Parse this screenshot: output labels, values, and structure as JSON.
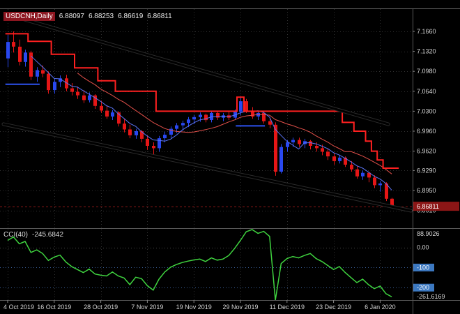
{
  "title_bar": {
    "symbol": "USDCNH,Daily",
    "open": "6.88097",
    "high": "6.88253",
    "low": "6.86619",
    "close": "6.86811"
  },
  "indicator_panel": {
    "name": "CCI(40)",
    "value": "-245.6842"
  },
  "price_axis": {
    "current_price_label": "6.86811"
  },
  "colors": {
    "background": "#000000",
    "grid": "#323232",
    "frame": "#5a5a5a",
    "up": "#2948f0",
    "down": "#e51616",
    "ma_fast": "#5a74f5",
    "ma_slow": "#e2504a",
    "step_line": "#ff2020",
    "segment": "#2d52f0",
    "trendline": "#000000",
    "trendline_halo": "#2b2b2b",
    "cci_line": "#3fd33f",
    "level_line": "#3b5f98",
    "zero_line": "#4a4a4a",
    "level_badge": "#3c78c0",
    "price_badge": "#8c1616",
    "axis_text": "#d4d4d4"
  },
  "chart_data": {
    "type": "candlestick",
    "title": "USDCNH,Daily",
    "x_tick_labels": [
      "4 Oct 2019",
      "16 Oct 2019",
      "28 Oct 2019",
      "7 Nov 2019",
      "19 Nov 2019",
      "29 Nov 2019",
      "11 Dec 2019",
      "23 Dec 2019",
      "6 Jan 2020"
    ],
    "x_tick_candle_indices": [
      0,
      8,
      16,
      24,
      32,
      40,
      48,
      56,
      64
    ],
    "price_tick_labels": [
      "7.1660",
      "7.1320",
      "7.0980",
      "7.0640",
      "7.0300",
      "6.9960",
      "6.9620",
      "6.9290",
      "6.8950",
      "6.8610"
    ],
    "last_price": 6.86811,
    "candles": [
      [
        7.12,
        7.16,
        7.105,
        7.148
      ],
      [
        7.148,
        7.166,
        7.13,
        7.14
      ],
      [
        7.14,
        7.152,
        7.108,
        7.114
      ],
      [
        7.114,
        7.135,
        7.106,
        7.13
      ],
      [
        7.13,
        7.133,
        7.083,
        7.089
      ],
      [
        7.089,
        7.105,
        7.08,
        7.1
      ],
      [
        7.1,
        7.108,
        7.088,
        7.094
      ],
      [
        7.094,
        7.098,
        7.06,
        7.066
      ],
      [
        7.066,
        7.085,
        7.06,
        7.08
      ],
      [
        7.08,
        7.091,
        7.071,
        7.086
      ],
      [
        7.086,
        7.092,
        7.064,
        7.069
      ],
      [
        7.069,
        7.078,
        7.057,
        7.063
      ],
      [
        7.063,
        7.072,
        7.051,
        7.057
      ],
      [
        7.057,
        7.066,
        7.044,
        7.049
      ],
      [
        7.049,
        7.062,
        7.045,
        7.057
      ],
      [
        7.057,
        7.059,
        7.034,
        7.039
      ],
      [
        7.039,
        7.048,
        7.027,
        7.031
      ],
      [
        7.031,
        7.04,
        7.017,
        7.021
      ],
      [
        7.021,
        7.032,
        7.015,
        7.028
      ],
      [
        7.028,
        7.03,
        7.004,
        7.009
      ],
      [
        7.009,
        7.017,
        6.994,
        6.999
      ],
      [
        6.999,
        7.007,
        6.984,
        6.989
      ],
      [
        6.989,
        7.0,
        6.983,
        6.996
      ],
      [
        6.996,
        6.998,
        6.977,
        6.983
      ],
      [
        6.983,
        6.989,
        6.964,
        6.971
      ],
      [
        6.971,
        6.977,
        6.954,
        6.967
      ],
      [
        6.967,
        6.988,
        6.961,
        6.984
      ],
      [
        6.984,
        6.995,
        6.977,
        6.99
      ],
      [
        6.99,
        7.004,
        6.984,
        7.0
      ],
      [
        7.0,
        7.01,
        6.993,
        7.006
      ],
      [
        7.006,
        7.014,
        6.997,
        7.01
      ],
      [
        7.01,
        7.02,
        7.003,
        7.016
      ],
      [
        7.016,
        7.024,
        7.008,
        7.02
      ],
      [
        7.02,
        7.028,
        7.012,
        7.024
      ],
      [
        7.024,
        7.026,
        7.011,
        7.015
      ],
      [
        7.015,
        7.031,
        7.011,
        7.027
      ],
      [
        7.027,
        7.031,
        7.015,
        7.019
      ],
      [
        7.019,
        7.027,
        7.013,
        7.023
      ],
      [
        7.023,
        7.029,
        7.015,
        7.019
      ],
      [
        7.019,
        7.033,
        7.015,
        7.029
      ],
      [
        7.029,
        7.055,
        7.023,
        7.047
      ],
      [
        7.047,
        7.051,
        7.027,
        7.031
      ],
      [
        7.031,
        7.037,
        7.017,
        7.021
      ],
      [
        7.021,
        7.031,
        7.015,
        7.027
      ],
      [
        7.027,
        7.029,
        7.009,
        7.013
      ],
      [
        7.013,
        7.019,
        7.001,
        7.007
      ],
      [
        7.007,
        7.011,
        6.92,
        6.927
      ],
      [
        6.927,
        6.974,
        6.924,
        6.969
      ],
      [
        6.969,
        6.981,
        6.961,
        6.977
      ],
      [
        6.977,
        6.985,
        6.969,
        6.981
      ],
      [
        6.981,
        6.985,
        6.969,
        6.974
      ],
      [
        6.974,
        6.983,
        6.967,
        6.979
      ],
      [
        6.979,
        6.981,
        6.965,
        6.971
      ],
      [
        6.971,
        6.977,
        6.961,
        6.967
      ],
      [
        6.967,
        6.973,
        6.955,
        6.961
      ],
      [
        6.961,
        6.967,
        6.947,
        6.953
      ],
      [
        6.953,
        6.959,
        6.939,
        6.945
      ],
      [
        6.945,
        6.955,
        6.941,
        6.951
      ],
      [
        6.951,
        6.953,
        6.935,
        6.939
      ],
      [
        6.939,
        6.945,
        6.927,
        6.931
      ],
      [
        6.931,
        6.937,
        6.915,
        6.919
      ],
      [
        6.919,
        6.929,
        6.913,
        6.925
      ],
      [
        6.925,
        6.927,
        6.909,
        6.917
      ],
      [
        6.917,
        6.921,
        6.899,
        6.904
      ],
      [
        6.904,
        6.911,
        6.893,
        6.907
      ],
      [
        6.907,
        6.909,
        6.877,
        6.881
      ],
      [
        6.88097,
        6.88253,
        6.86619,
        6.86811
      ]
    ],
    "overlays": {
      "ma_fast_period": 5,
      "ma_slow_period": 13,
      "step_line": [
        [
          -0.4,
          7.162
        ],
        [
          3.5,
          7.162
        ],
        [
          3.5,
          7.149
        ],
        [
          7.5,
          7.149
        ],
        [
          7.5,
          7.127
        ],
        [
          11.5,
          7.127
        ],
        [
          11.5,
          7.104
        ],
        [
          15.5,
          7.104
        ],
        [
          15.5,
          7.082
        ],
        [
          18.5,
          7.082
        ],
        [
          18.5,
          7.064
        ],
        [
          25.5,
          7.064
        ],
        [
          25.5,
          7.03
        ],
        [
          39.4,
          7.03
        ],
        [
          39.4,
          7.054
        ],
        [
          40.6,
          7.054
        ],
        [
          40.6,
          7.03
        ],
        [
          57.5,
          7.03
        ],
        [
          57.5,
          7.011
        ],
        [
          59.5,
          7.011
        ],
        [
          59.5,
          6.996
        ],
        [
          61.5,
          6.996
        ],
        [
          61.5,
          6.979
        ],
        [
          62.5,
          6.979
        ],
        [
          62.5,
          6.962
        ],
        [
          63.5,
          6.962
        ],
        [
          63.5,
          6.947
        ],
        [
          64.5,
          6.947
        ],
        [
          64.5,
          6.933
        ],
        [
          67.2,
          6.933
        ]
      ],
      "trendlines": [
        {
          "i1": 2.87,
          "p1": 7.1862,
          "i2": 65.4,
          "p2": 7.0079
        },
        {
          "i1": -0.72,
          "p1": 7.008,
          "i2": 69.3,
          "p2": 6.8605
        }
      ],
      "support_segments": [
        {
          "i1": -0.4,
          "i2": 5.5,
          "p": 7.076
        },
        {
          "i1": 39.2,
          "i2": 44.2,
          "p": 7.005
        }
      ]
    },
    "indicator": {
      "type": "line",
      "name": "CCI",
      "period": 40,
      "last_value": -245.6842,
      "scale_max": 88.9026,
      "scale_min": -261.6169,
      "levels": [
        0,
        -100,
        -200
      ],
      "axis_labels": {
        "max": "88.9026",
        "zero": "0.00",
        "minus100": "-100",
        "minus200": "-200",
        "min": "-261.6169"
      },
      "values": [
        35,
        52,
        18,
        30,
        -25,
        -12,
        -30,
        -65,
        -48,
        -38,
        -72,
        -95,
        -110,
        -125,
        -108,
        -132,
        -138,
        -142,
        -122,
        -142,
        -152,
        -185,
        -148,
        -155,
        -190,
        -212,
        -158,
        -122,
        -98,
        -85,
        -75,
        -68,
        -62,
        -58,
        -70,
        -52,
        -63,
        -58,
        -40,
        -5,
        35,
        78,
        88.9026,
        70,
        80,
        55,
        -261.6169,
        -80,
        -55,
        -45,
        -52,
        -40,
        -30,
        -55,
        -70,
        -90,
        -110,
        -95,
        -125,
        -150,
        -175,
        -158,
        -185,
        -205,
        -192,
        -230,
        -245.6842
      ]
    }
  }
}
